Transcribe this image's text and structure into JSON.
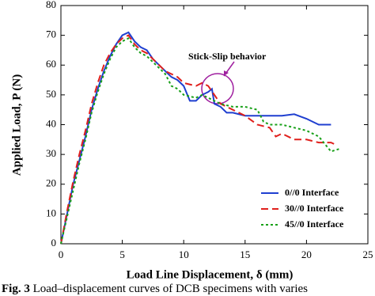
{
  "chart_data": {
    "type": "line",
    "xlabel": "Load Line Displacement, δ (mm)",
    "ylabel": "Applied Load, P (N)",
    "xlim": [
      0,
      25
    ],
    "xticks": [
      0,
      5,
      10,
      15,
      20,
      25
    ],
    "ylim": [
      0,
      80
    ],
    "yticks": [
      0,
      10,
      20,
      30,
      40,
      50,
      60,
      70,
      80
    ],
    "legend": "lower right",
    "annotation": "Stick-Slip behavior",
    "caption_label": "Fig. 3",
    "caption": "Load–displacement curves of DCB specimens with varies",
    "series": [
      {
        "name": "0//0 Interface",
        "color": "#1f3fd0",
        "style": "solid",
        "x": [
          0,
          0.5,
          1,
          1.5,
          2,
          2.5,
          3,
          3.5,
          4,
          4.5,
          5,
          5.5,
          6,
          6.5,
          7,
          7.5,
          8,
          8.5,
          9,
          9.5,
          10,
          10.5,
          11,
          11.5,
          12,
          12.3,
          12.5,
          13,
          13.5,
          14,
          15,
          16,
          17,
          18,
          19,
          20,
          21,
          22
        ],
        "values": [
          0,
          10,
          20,
          28,
          36,
          45,
          52,
          58,
          63,
          67,
          70,
          71,
          68,
          66,
          65,
          62,
          60,
          58,
          56,
          55,
          53,
          48,
          48,
          50,
          51,
          52,
          47,
          46,
          44,
          44,
          43,
          43,
          43,
          43,
          43.5,
          42,
          40,
          40
        ]
      },
      {
        "name": "30//0 Interface",
        "color": "#e0201c",
        "style": "dashed",
        "x": [
          0,
          0.5,
          1,
          1.5,
          2,
          2.5,
          3,
          3.5,
          4,
          4.5,
          5,
          5.5,
          6,
          6.5,
          7,
          7.5,
          8,
          8.5,
          9,
          9.5,
          10,
          11,
          11.5,
          12,
          12.5,
          13,
          14,
          15,
          16,
          17,
          17.5,
          18,
          19,
          20,
          21,
          22,
          22.5
        ],
        "values": [
          0,
          11,
          21,
          30,
          38,
          47,
          54,
          60,
          64,
          67,
          69,
          70,
          67,
          65,
          64,
          62,
          60,
          58,
          57,
          56,
          54,
          53,
          54,
          53,
          50,
          47,
          45,
          43,
          40,
          39,
          36,
          37,
          35,
          35,
          34,
          34,
          33
        ]
      },
      {
        "name": "45//0 Interface",
        "color": "#18a018",
        "style": "dotted",
        "x": [
          0,
          0.5,
          1,
          1.5,
          2,
          2.5,
          3,
          3.5,
          4,
          4.5,
          5,
          5.5,
          6,
          6.5,
          7,
          7.5,
          8,
          8.5,
          9,
          9.5,
          10,
          11,
          11.5,
          12,
          13,
          14,
          15,
          16,
          16.5,
          17,
          18,
          19,
          20,
          21,
          22,
          22.8
        ],
        "values": [
          0,
          9,
          18,
          27,
          35,
          44,
          51,
          57,
          62,
          66,
          68,
          69,
          66,
          64,
          63,
          61,
          59,
          57,
          53,
          52,
          50,
          49,
          50,
          49,
          47,
          46,
          46,
          45,
          41,
          40,
          40,
          39,
          38,
          36,
          31,
          32
        ]
      }
    ]
  }
}
